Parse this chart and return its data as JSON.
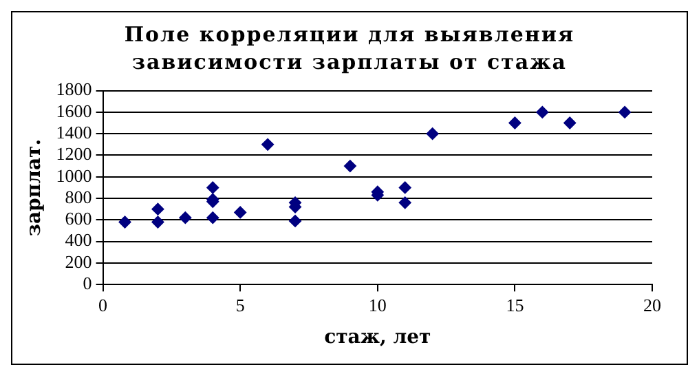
{
  "chart_data": {
    "type": "scatter",
    "title": "Поле корреляции для выявления зависимости зарплаты от стажа",
    "xlabel": "стаж, лет",
    "ylabel": "зарплат.",
    "series": [
      {
        "color": "#000080",
        "x": [
          0.8,
          2,
          2,
          3,
          4,
          4,
          4,
          4,
          5,
          6,
          7,
          7,
          7,
          9,
          10,
          10,
          11,
          11,
          12,
          15,
          16,
          17,
          19
        ],
        "values": [
          580,
          580,
          700,
          620,
          620,
          770,
          790,
          900,
          670,
          1300,
          590,
          720,
          760,
          1100,
          830,
          860,
          760,
          900,
          1400,
          1500,
          1600,
          1500,
          1600
        ]
      }
    ],
    "xlim": [
      0,
      20
    ],
    "xticks": [
      0,
      5,
      10,
      15,
      20
    ],
    "ylim": [
      0,
      1800
    ],
    "yticks": [
      0,
      200,
      400,
      600,
      800,
      1000,
      1200,
      1400,
      1600,
      1800
    ],
    "grid": "y",
    "legend": false,
    "marker": "diamond"
  }
}
